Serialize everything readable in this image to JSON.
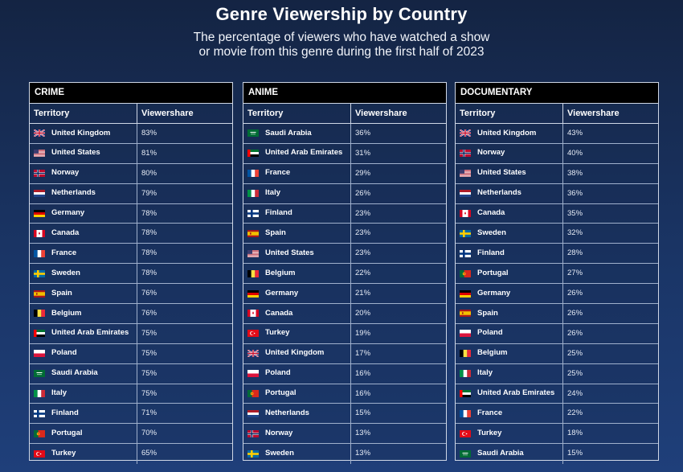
{
  "header": {
    "title": "Genre Viewership by Country",
    "subtitle_line1": "The percentage of viewers who have watched a show",
    "subtitle_line2": "or movie from this genre during the first half of 2023"
  },
  "columns": {
    "territory": "Territory",
    "viewershare": "Viewershare"
  },
  "chart_data": [
    {
      "type": "table",
      "title": "CRIME",
      "columns": [
        "Territory",
        "Viewershare"
      ],
      "rows": [
        {
          "territory": "United Kingdom",
          "flag": "gb",
          "value": 83,
          "label": "83%"
        },
        {
          "territory": "United States",
          "flag": "us",
          "value": 81,
          "label": "81%"
        },
        {
          "territory": "Norway",
          "flag": "no",
          "value": 80,
          "label": "80%"
        },
        {
          "territory": "Netherlands",
          "flag": "nl",
          "value": 79,
          "label": "79%"
        },
        {
          "territory": "Germany",
          "flag": "de",
          "value": 78,
          "label": "78%"
        },
        {
          "territory": "Canada",
          "flag": "ca",
          "value": 78,
          "label": "78%"
        },
        {
          "territory": "France",
          "flag": "fr",
          "value": 78,
          "label": "78%"
        },
        {
          "territory": "Sweden",
          "flag": "se",
          "value": 78,
          "label": "78%"
        },
        {
          "territory": "Spain",
          "flag": "es",
          "value": 76,
          "label": "76%"
        },
        {
          "territory": "Belgium",
          "flag": "be",
          "value": 76,
          "label": "76%"
        },
        {
          "territory": "United Arab Emirates",
          "flag": "ae",
          "value": 75,
          "label": "75%"
        },
        {
          "territory": "Poland",
          "flag": "pl",
          "value": 75,
          "label": "75%"
        },
        {
          "territory": "Saudi Arabia",
          "flag": "sa",
          "value": 75,
          "label": "75%"
        },
        {
          "territory": "Italy",
          "flag": "it",
          "value": 75,
          "label": "75%"
        },
        {
          "territory": "Finland",
          "flag": "fi",
          "value": 71,
          "label": "71%"
        },
        {
          "territory": "Portugal",
          "flag": "pt",
          "value": 70,
          "label": "70%"
        },
        {
          "territory": "Turkey",
          "flag": "tr",
          "value": 65,
          "label": "65%"
        }
      ]
    },
    {
      "type": "table",
      "title": "ANIME",
      "columns": [
        "Territory",
        "Viewershare"
      ],
      "rows": [
        {
          "territory": "Saudi Arabia",
          "flag": "sa",
          "value": 36,
          "label": "36%"
        },
        {
          "territory": "United Arab Emirates",
          "flag": "ae",
          "value": 31,
          "label": "31%"
        },
        {
          "territory": "France",
          "flag": "fr",
          "value": 29,
          "label": "29%"
        },
        {
          "territory": "Italy",
          "flag": "it",
          "value": 26,
          "label": "26%"
        },
        {
          "territory": "Finland",
          "flag": "fi",
          "value": 23,
          "label": "23%"
        },
        {
          "territory": "Spain",
          "flag": "es",
          "value": 23,
          "label": "23%"
        },
        {
          "territory": "United States",
          "flag": "us",
          "value": 23,
          "label": "23%"
        },
        {
          "territory": "Belgium",
          "flag": "be",
          "value": 22,
          "label": "22%"
        },
        {
          "territory": "Germany",
          "flag": "de",
          "value": 21,
          "label": "21%"
        },
        {
          "territory": "Canada",
          "flag": "ca",
          "value": 20,
          "label": "20%"
        },
        {
          "territory": "Turkey",
          "flag": "tr",
          "value": 19,
          "label": "19%"
        },
        {
          "territory": "United Kingdom",
          "flag": "gb",
          "value": 17,
          "label": "17%"
        },
        {
          "territory": "Poland",
          "flag": "pl",
          "value": 16,
          "label": "16%"
        },
        {
          "territory": "Portugal",
          "flag": "pt",
          "value": 16,
          "label": "16%"
        },
        {
          "territory": "Netherlands",
          "flag": "nl",
          "value": 15,
          "label": "15%"
        },
        {
          "territory": "Norway",
          "flag": "no",
          "value": 13,
          "label": "13%"
        },
        {
          "territory": "Sweden",
          "flag": "se",
          "value": 13,
          "label": "13%"
        }
      ]
    },
    {
      "type": "table",
      "title": "DOCUMENTARY",
      "columns": [
        "Territory",
        "Viewershare"
      ],
      "rows": [
        {
          "territory": "United Kingdom",
          "flag": "gb",
          "value": 43,
          "label": "43%"
        },
        {
          "territory": "Norway",
          "flag": "no",
          "value": 40,
          "label": "40%"
        },
        {
          "territory": "United States",
          "flag": "us",
          "value": 38,
          "label": "38%"
        },
        {
          "territory": "Netherlands",
          "flag": "nl",
          "value": 36,
          "label": "36%"
        },
        {
          "territory": "Canada",
          "flag": "ca",
          "value": 35,
          "label": "35%"
        },
        {
          "territory": "Sweden",
          "flag": "se",
          "value": 32,
          "label": "32%"
        },
        {
          "territory": "Finland",
          "flag": "fi",
          "value": 28,
          "label": "28%"
        },
        {
          "territory": "Portugal",
          "flag": "pt",
          "value": 27,
          "label": "27%"
        },
        {
          "territory": "Germany",
          "flag": "de",
          "value": 26,
          "label": "26%"
        },
        {
          "territory": "Spain",
          "flag": "es",
          "value": 26,
          "label": "26%"
        },
        {
          "territory": "Poland",
          "flag": "pl",
          "value": 26,
          "label": "26%"
        },
        {
          "territory": "Belgium",
          "flag": "be",
          "value": 25,
          "label": "25%"
        },
        {
          "territory": "Italy",
          "flag": "it",
          "value": 25,
          "label": "25%"
        },
        {
          "territory": "United Arab Emirates",
          "flag": "ae",
          "value": 24,
          "label": "24%"
        },
        {
          "territory": "France",
          "flag": "fr",
          "value": 22,
          "label": "22%"
        },
        {
          "territory": "Turkey",
          "flag": "tr",
          "value": 18,
          "label": "18%"
        },
        {
          "territory": "Saudi Arabia",
          "flag": "sa",
          "value": 15,
          "label": "15%"
        }
      ]
    }
  ],
  "colors": {
    "background_top": "#142443",
    "background_bottom": "#1f3f7a",
    "panel_header": "#000000",
    "grid_line": "#9fb0cc"
  }
}
